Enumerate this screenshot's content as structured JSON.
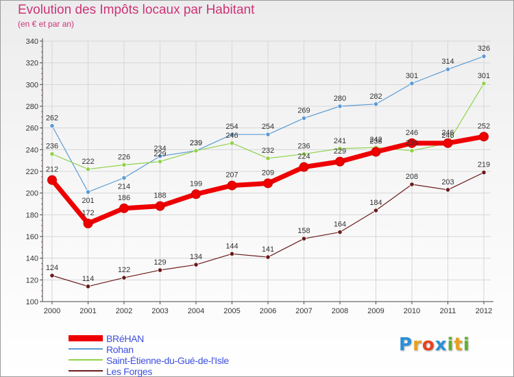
{
  "title": "Evolution des Impôts locaux par Habitant",
  "subtitle": "(en € et par an)",
  "logo": {
    "text": "Proxiti",
    "letters": [
      "P",
      "r",
      "o",
      "x",
      "i",
      "t",
      "i"
    ],
    "colors": [
      "#2a8fd8",
      "#e8a020",
      "#e84020",
      "#2a8fd8",
      "#60b030",
      "#e8a020",
      "#60b030"
    ]
  },
  "chart_data": {
    "type": "line",
    "title": "Evolution des Impôts locaux par Habitant",
    "subtitle": "(en € et par an)",
    "xlabel": "",
    "ylabel": "",
    "x": [
      "2000",
      "2001",
      "2002",
      "2003",
      "2004",
      "2005",
      "2006",
      "2007",
      "2008",
      "2009",
      "2010",
      "2011",
      "2012"
    ],
    "ylim": [
      100,
      340
    ],
    "yticks": [
      100,
      120,
      140,
      160,
      180,
      200,
      220,
      240,
      260,
      280,
      300,
      320,
      340
    ],
    "grid": true,
    "legend": "bottom-left",
    "series": [
      {
        "name": "Rohan",
        "color": "#5b9bd5",
        "width": 1.2,
        "marker": 3.2,
        "labelColor": "#333333",
        "values": [
          262,
          201,
          214,
          234,
          239,
          254,
          254,
          269,
          280,
          282,
          301,
          314,
          326
        ],
        "labelPos": [
          "above",
          "below",
          "below",
          "above",
          "above",
          "above",
          "above",
          "above",
          "above",
          "above",
          "above",
          "above",
          "above"
        ]
      },
      {
        "name": "Saint-Étienne-du-Gué-de-l'Isle",
        "color": "#8fd24a",
        "width": 1.2,
        "marker": 3.2,
        "labelColor": "#333333",
        "values": [
          236,
          222,
          226,
          229,
          239,
          246,
          232,
          236,
          241,
          242,
          239,
          246,
          301
        ],
        "labelPos": [
          "above",
          "above",
          "above",
          "above",
          "above",
          "above",
          "above",
          "above",
          "above",
          "above",
          "above",
          "above",
          "above"
        ]
      },
      {
        "name": "Les Forges",
        "color": "#6b1a1a",
        "width": 1.2,
        "marker": 3.2,
        "labelColor": "#333333",
        "values": [
          124,
          114,
          122,
          129,
          134,
          144,
          141,
          158,
          164,
          184,
          208,
          203,
          219
        ],
        "labelPos": [
          "above",
          "above",
          "above",
          "above",
          "above",
          "above",
          "above",
          "above",
          "above",
          "above",
          "above",
          "above",
          "above"
        ]
      },
      {
        "name": "BRéHAN",
        "color": "#ee0000",
        "width": 7,
        "marker": 6.5,
        "labelColor": "#333333",
        "values": [
          212,
          172,
          186,
          188,
          199,
          207,
          209,
          224,
          229,
          238,
          246,
          246,
          252
        ],
        "labelPos": [
          "above",
          "above",
          "above",
          "above",
          "above",
          "above",
          "above",
          "above",
          "above",
          "above",
          "above",
          "above",
          "above"
        ]
      }
    ],
    "legendOrder": [
      3,
      0,
      1,
      2
    ]
  }
}
